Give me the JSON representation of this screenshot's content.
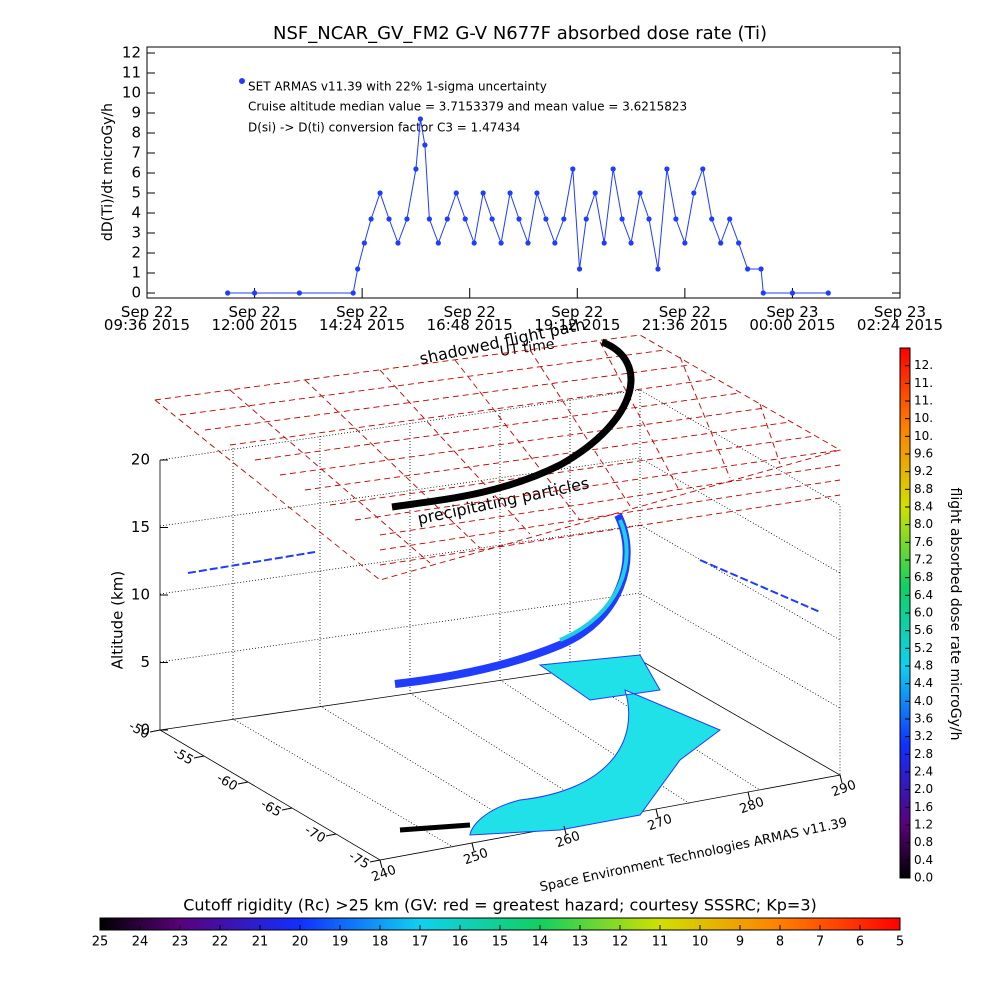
{
  "chart_data": [
    {
      "type": "line",
      "title": "NSF_NCAR_GV_FM2 G-V     N677F  absorbed dose rate (Ti)",
      "ylabel": "dD(Ti)/dt microGy/h",
      "annotations": [
        "Cruise altitude median value = 3.7153379 and mean value = 3.6215823",
        "D(si) -> D(ti) conversion factor C3 = 1.47434"
      ],
      "xlim": [
        "2015-09-22T09:36",
        "2015-09-23T02:24"
      ],
      "xticks": [
        {
          "value": "2015-09-22T09:36",
          "label": "Sep 22\n09:36 2015"
        },
        {
          "value": "2015-09-22T12:00",
          "label": "Sep 22\n12:00 2015"
        },
        {
          "value": "2015-09-22T14:24",
          "label": "Sep 22\n14:24 2015"
        },
        {
          "value": "2015-09-22T16:48",
          "label": "Sep 22\n16:48 2015"
        },
        {
          "value": "2015-09-22T19:12",
          "label": "Sep 22\n19:12 2015"
        },
        {
          "value": "2015-09-22T21:36",
          "label": "Sep 22\n21:36 2015"
        },
        {
          "value": "2015-09-23T00:00",
          "label": "Sep 23\n00:00 2015"
        },
        {
          "value": "2015-09-23T02:24",
          "label": "Sep 23\n02:24 2015"
        }
      ],
      "ylim": [
        0,
        12
      ],
      "yticks": [
        0,
        1,
        2,
        3,
        4,
        5,
        6,
        7,
        8,
        9,
        10,
        11,
        12
      ],
      "x": [
        "2015-09-22T11:24",
        "2015-09-22T12:00",
        "2015-09-22T13:00",
        "2015-09-22T14:12",
        "2015-09-22T14:18",
        "2015-09-22T14:27",
        "2015-09-22T14:36",
        "2015-09-22T14:48",
        "2015-09-22T15:00",
        "2015-09-22T15:12",
        "2015-09-22T15:24",
        "2015-09-22T15:36",
        "2015-09-22T15:42",
        "2015-09-22T15:48",
        "2015-09-22T15:54",
        "2015-09-22T16:06",
        "2015-09-22T16:18",
        "2015-09-22T16:30",
        "2015-09-22T16:42",
        "2015-09-22T16:54",
        "2015-09-22T17:06",
        "2015-09-22T17:18",
        "2015-09-22T17:30",
        "2015-09-22T17:42",
        "2015-09-22T17:54",
        "2015-09-22T18:06",
        "2015-09-22T18:18",
        "2015-09-22T18:30",
        "2015-09-22T18:42",
        "2015-09-22T18:54",
        "2015-09-22T19:06",
        "2015-09-22T19:15",
        "2015-09-22T19:24",
        "2015-09-22T19:36",
        "2015-09-22T19:48",
        "2015-09-22T20:00",
        "2015-09-22T20:12",
        "2015-09-22T20:24",
        "2015-09-22T20:36",
        "2015-09-22T20:48",
        "2015-09-22T21:00",
        "2015-09-22T21:12",
        "2015-09-22T21:24",
        "2015-09-22T21:36",
        "2015-09-22T21:48",
        "2015-09-22T22:00",
        "2015-09-22T22:12",
        "2015-09-22T22:24",
        "2015-09-22T22:36",
        "2015-09-22T22:48",
        "2015-09-22T23:00",
        "2015-09-22T23:18",
        "2015-09-22T23:21",
        "2015-09-23T00:00",
        "2015-09-23T00:48"
      ],
      "series": [
        {
          "name": "SET ARMAS v11.39 with 22% 1-sigma uncertainty",
          "color": "#1f3cff",
          "values": [
            0,
            0,
            0,
            0,
            1.2,
            2.5,
            3.7,
            5.0,
            3.7,
            2.5,
            3.7,
            6.2,
            8.7,
            7.4,
            3.7,
            2.5,
            3.7,
            5.0,
            3.7,
            2.5,
            5.0,
            3.7,
            2.5,
            5.0,
            3.7,
            2.5,
            5.0,
            3.7,
            2.5,
            3.7,
            6.2,
            1.2,
            3.7,
            5.0,
            2.5,
            6.2,
            3.7,
            2.5,
            5.0,
            3.7,
            1.2,
            6.2,
            3.7,
            2.5,
            5.0,
            6.2,
            3.7,
            2.5,
            3.7,
            2.5,
            1.2,
            1.2,
            0,
            0,
            0
          ]
        }
      ]
    },
    {
      "type": "flight3d",
      "zlabel": "Altitude (km)",
      "zlim": [
        0,
        20
      ],
      "zticks": [
        0,
        5,
        10,
        15,
        20
      ],
      "lat_ticks": [
        -50,
        -55,
        -60,
        -65,
        -70,
        -75
      ],
      "lon_ticks": [
        240,
        250,
        260,
        270,
        280,
        290
      ],
      "annotations": [
        "shadowed flight path",
        "UT time",
        "precipitating particles",
        "Space Environment Technologies ARMAS v11.39"
      ],
      "colorbar": {
        "label": "flight absorbed dose rate microGy/h",
        "lim": [
          0,
          12
        ],
        "ticks": [
          {
            "value": 0,
            "label": "0.0"
          },
          0.4,
          0.8,
          1.2,
          1.6,
          {
            "value": 2,
            "label": "2.0"
          },
          2.4,
          2.8,
          3.2,
          3.6,
          {
            "value": 4,
            "label": "4.0"
          },
          4.4,
          4.8,
          5.2,
          5.6,
          {
            "value": 6,
            "label": "6.0"
          },
          6.4,
          6.8,
          7.2,
          7.6,
          {
            "value": 8,
            "label": "8.0"
          },
          8.4,
          8.8,
          9.2,
          9.6,
          {
            "value": 10,
            "label": "10."
          },
          {
            "value": 10.4,
            "label": "10."
          },
          {
            "value": 10.8,
            "label": "11."
          },
          {
            "value": 11.2,
            "label": "11."
          },
          {
            "value": 11.6,
            "label": "12."
          }
        ]
      },
      "rigidity_bar": {
        "title": "Cutoff rigidity (Rc) >25 km (GV: red = greatest hazard; courtesy SSSRC; Kp=3)",
        "lim": [
          25,
          5
        ],
        "ticks": [
          25,
          24,
          23,
          22,
          21,
          20,
          19,
          18,
          17,
          16,
          15,
          14,
          13,
          12,
          11,
          10,
          9,
          8,
          7,
          6,
          5
        ]
      }
    }
  ]
}
